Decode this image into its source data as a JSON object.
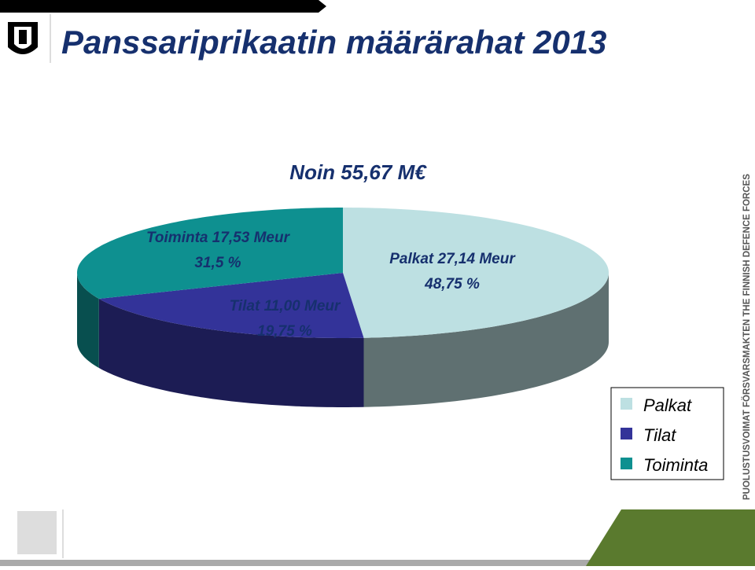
{
  "header": {
    "title": "Panssariprikaatin määrärahat 2013"
  },
  "sidebar": "PUOLUSTUSVOIMAT   FÖRSVARSMAKTEN   THE FINNISH DEFENCE FORCES",
  "chart_data": {
    "type": "pie",
    "title": "Noin 55,67 M€",
    "categories": [
      "Palkat",
      "Tilat",
      "Toiminta"
    ],
    "values": [
      48.75,
      19.75,
      31.5
    ],
    "value_labels": [
      "48,75 %",
      "19,75 %",
      "31,5 %"
    ],
    "amounts": [
      27.14,
      11.0,
      17.53
    ],
    "amount_labels": [
      "Palkat 27,14 Meur",
      "Tilat 11,00 Meur",
      "Toiminta 17,53 Meur"
    ],
    "colors": [
      "#bde0e2",
      "#333399",
      "#0e9090"
    ],
    "legend": "bottom-right"
  }
}
